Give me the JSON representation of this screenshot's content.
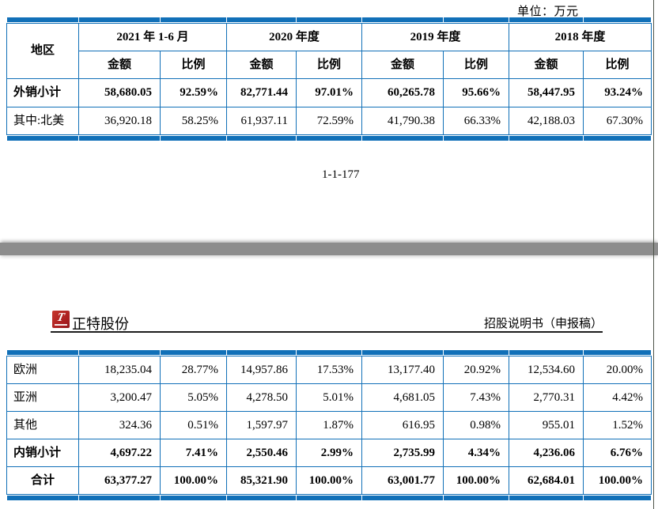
{
  "unit_label": "单位：万元",
  "page_number": "1-1-177",
  "page_header": {
    "brand": "正特股份",
    "doc_type": "招股说明书（申报稿）",
    "logo_glyph": "T"
  },
  "colors": {
    "table_border_blue": "#1170b8",
    "page_gap_gray": "#8d8d8d",
    "logo_red": "#a81d20"
  },
  "table": {
    "region_header": "地区",
    "periods": [
      "2021 年 1-6 月",
      "2020 年度",
      "2019 年度",
      "2018 年度"
    ],
    "sub_headers": {
      "amount": "金额",
      "ratio": "比例"
    },
    "top_rows": [
      {
        "label": "外销小计",
        "bold": true,
        "center": false,
        "values": [
          "58,680.05",
          "92.59%",
          "82,771.44",
          "97.01%",
          "60,265.78",
          "95.66%",
          "58,447.95",
          "93.24%"
        ]
      },
      {
        "label": "其中:北美",
        "bold": false,
        "center": false,
        "values": [
          "36,920.18",
          "58.25%",
          "61,937.11",
          "72.59%",
          "41,790.38",
          "66.33%",
          "42,188.03",
          "67.30%"
        ]
      }
    ],
    "bottom_rows": [
      {
        "label": "欧洲",
        "bold": false,
        "center": false,
        "values": [
          "18,235.04",
          "28.77%",
          "14,957.86",
          "17.53%",
          "13,177.40",
          "20.92%",
          "12,534.60",
          "20.00%"
        ]
      },
      {
        "label": "亚洲",
        "bold": false,
        "center": false,
        "values": [
          "3,200.47",
          "5.05%",
          "4,278.50",
          "5.01%",
          "4,681.05",
          "7.43%",
          "2,770.31",
          "4.42%"
        ]
      },
      {
        "label": "其他",
        "bold": false,
        "center": false,
        "values": [
          "324.36",
          "0.51%",
          "1,597.97",
          "1.87%",
          "616.95",
          "0.98%",
          "955.01",
          "1.52%"
        ]
      },
      {
        "label": "内销小计",
        "bold": true,
        "center": false,
        "values": [
          "4,697.22",
          "7.41%",
          "2,550.46",
          "2.99%",
          "2,735.99",
          "4.34%",
          "4,236.06",
          "6.76%"
        ]
      },
      {
        "label": "合计",
        "bold": true,
        "center": true,
        "values": [
          "63,377.27",
          "100.00%",
          "85,321.90",
          "100.00%",
          "63,001.77",
          "100.00%",
          "62,684.01",
          "100.00%"
        ]
      }
    ]
  }
}
